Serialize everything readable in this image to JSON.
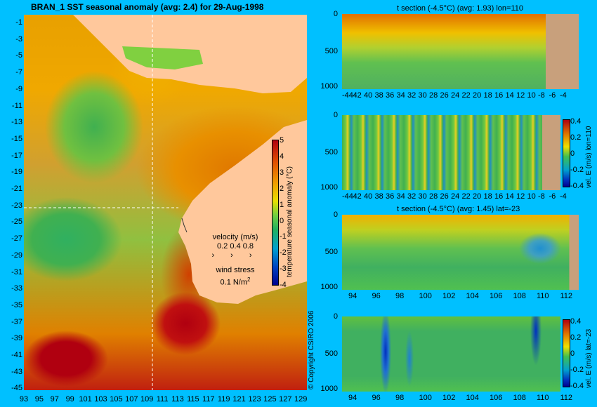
{
  "map": {
    "title": "BRAN_1  SST seasonal anomaly  (avg: 2.4)  for 29-Aug-1998",
    "lat_labels": [
      "-1",
      "-3",
      "-5",
      "-7",
      "-9",
      "-11",
      "-13",
      "-15",
      "-17",
      "-19",
      "-21",
      "-23",
      "-25",
      "-27",
      "-29",
      "-31",
      "-33",
      "-35",
      "-37",
      "-39",
      "-41",
      "-43",
      "-45"
    ],
    "lon_labels": [
      "93",
      "95",
      "97",
      "99",
      "101",
      "103",
      "105",
      "107",
      "109",
      "111",
      "113",
      "115",
      "117",
      "119",
      "121",
      "123",
      "125",
      "127",
      "129"
    ],
    "colorbar_label": "temperature seasonal anomaly (°C)",
    "colorbar_ticks": [
      "5",
      "4",
      "3",
      "2",
      "1",
      "0",
      "-1",
      "-2",
      "-3",
      "-4"
    ],
    "velocity_label": "velocity (m/s)",
    "velocity_scale": "0.2 0.4 0.8",
    "wind_label": "wind stress",
    "wind_scale": "0.1 N/m",
    "wind_sup": "2"
  },
  "panel1": {
    "title": "t section (-4.5°C) (avg: 1.93) lon=110",
    "x_labels": [
      "-44",
      "42",
      "40",
      "38",
      "36",
      "34",
      "32",
      "30",
      "28",
      "26",
      "24",
      "22",
      "20",
      "18",
      "16",
      "14",
      "12",
      "10",
      "-8",
      "-6",
      "-4"
    ],
    "y_labels": [
      "0",
      "500",
      "1000"
    ]
  },
  "panel2": {
    "x_labels": [
      "-44",
      "42",
      "40",
      "38",
      "36",
      "34",
      "32",
      "30",
      "28",
      "26",
      "24",
      "22",
      "20",
      "18",
      "16",
      "14",
      "12",
      "10",
      "-8",
      "-6",
      "-4"
    ],
    "y_labels": [
      "0",
      "500",
      "1000"
    ],
    "colorbar_ticks": [
      "0.4",
      "0.2",
      "0",
      "-0.2",
      "-0.4"
    ],
    "colorbar_label": "vel. E (m/s) lon=110"
  },
  "panel3": {
    "title": "t section (-4.5°C) (avg: 1.45) lat=-23",
    "x_labels": [
      "94",
      "96",
      "98",
      "100",
      "102",
      "104",
      "106",
      "108",
      "110",
      "112"
    ],
    "y_labels": [
      "0",
      "500",
      "1000"
    ]
  },
  "panel4": {
    "x_labels": [
      "94",
      "96",
      "98",
      "100",
      "102",
      "104",
      "106",
      "108",
      "110",
      "112"
    ],
    "y_labels": [
      "0",
      "500",
      "1000"
    ],
    "colorbar_ticks": [
      "0.4",
      "0.2",
      "0",
      "-0.2",
      "-0.4"
    ],
    "colorbar_label": "vel. E (m/s) lat=-23"
  },
  "copyright": "© Copyright CSIRO 2006",
  "colors": {
    "background": "#00c0ff",
    "land": "#ffc89c",
    "section_land": "#c8a07c",
    "warm": "#e07800",
    "hot": "#b00010",
    "neutral": "#70c840",
    "cool": "#30b060"
  }
}
